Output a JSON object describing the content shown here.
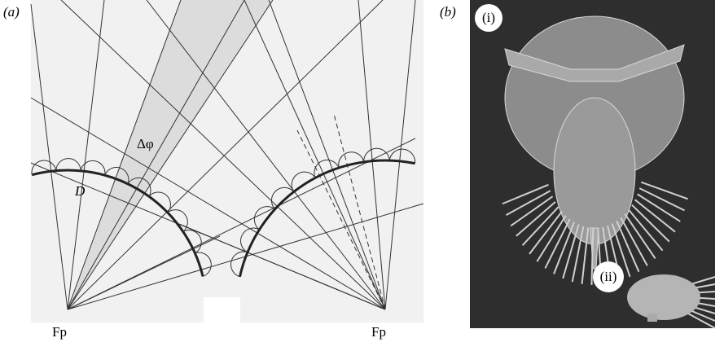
{
  "panel_a": {
    "label": "(a)",
    "angle_label": "Δφ",
    "diameter_label": "D",
    "focal_left": "Fp",
    "focal_right": "Fp"
  },
  "panel_b": {
    "label": "(b)",
    "sub_i": "(i)",
    "sub_ii": "(ii)"
  }
}
